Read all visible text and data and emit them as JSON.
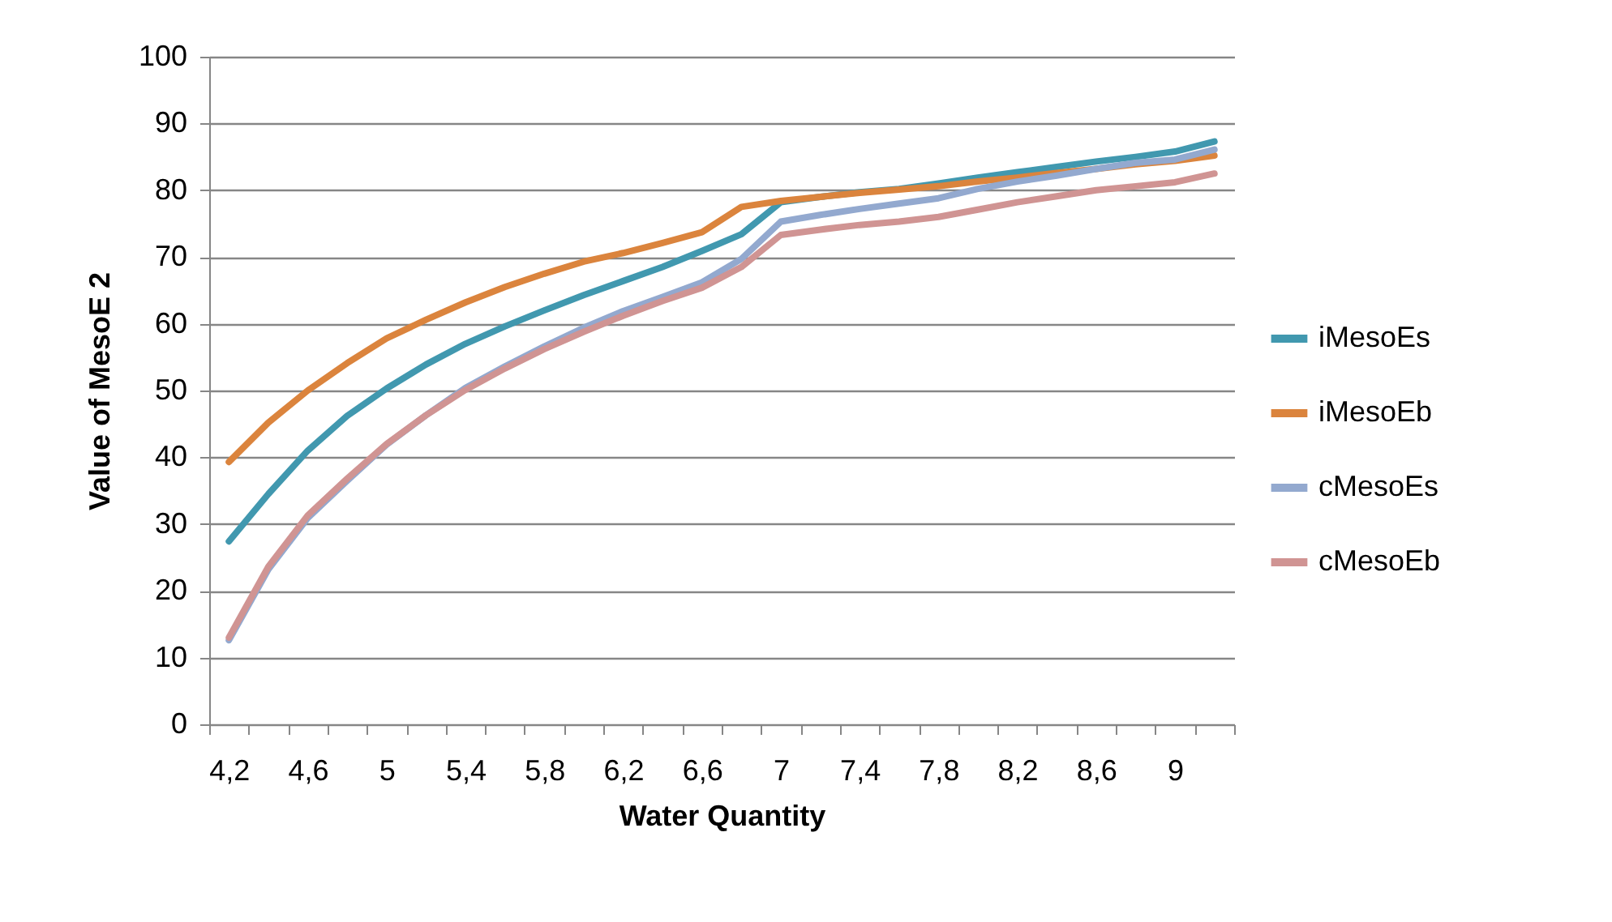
{
  "chart_data": {
    "type": "line",
    "xlabel": "Water Quantity",
    "ylabel": "Value of MesoE 2",
    "categories": [
      "4,2",
      null,
      "4,6",
      null,
      "5",
      null,
      "5,4",
      null,
      "5,8",
      null,
      "6,2",
      null,
      "6,6",
      null,
      "7",
      null,
      "7,4",
      null,
      "7,8",
      null,
      "8,2",
      null,
      "8,6",
      null,
      "9",
      null
    ],
    "series": [
      {
        "name": "iMesoEs",
        "color": "#4198af",
        "values": [
          27.4,
          34.5,
          41,
          46.2,
          50.3,
          53.9,
          57,
          59.6,
          62,
          64.3,
          66.4,
          68.5,
          70.9,
          73.4,
          78.2,
          79,
          79.7,
          80.2,
          81,
          81.9,
          82.7,
          83.5,
          84.3,
          85,
          85.8,
          87.3
        ]
      },
      {
        "name": "iMesoEb",
        "color": "#db843d",
        "values": [
          39.3,
          45.2,
          50,
          54.1,
          57.8,
          60.6,
          63.2,
          65.5,
          67.5,
          69.3,
          70.6,
          72.1,
          73.7,
          77.5,
          78.4,
          79,
          79.6,
          80.1,
          80.6,
          81.3,
          81.9,
          82.6,
          83.2,
          83.9,
          84.4,
          85.2
        ]
      },
      {
        "name": "cMesoEs",
        "color": "#93a9cf",
        "values": [
          12.6,
          23.2,
          30.9,
          36.5,
          41.9,
          46.3,
          50.4,
          53.6,
          56.6,
          59.4,
          61.9,
          64,
          66.2,
          69.7,
          75.3,
          76.3,
          77.2,
          78,
          78.8,
          80.2,
          81.3,
          82.2,
          83.2,
          84.1,
          84.6,
          86.1
        ]
      },
      {
        "name": "cMesoEb",
        "color": "#d09493",
        "values": [
          13,
          23.6,
          31.3,
          36.8,
          42,
          46.3,
          50.1,
          53.3,
          56.2,
          58.8,
          61.2,
          63.4,
          65.4,
          68.5,
          73.3,
          74.1,
          74.8,
          75.3,
          76,
          77.1,
          78.2,
          79.1,
          80,
          80.6,
          81.2,
          82.5
        ]
      }
    ],
    "ylim": [
      0,
      100
    ],
    "yticks": [
      0,
      10,
      20,
      30,
      40,
      50,
      60,
      70,
      80,
      90,
      100
    ],
    "grid": "y",
    "legend": "right",
    "marker": "none",
    "line_style": "solid"
  }
}
